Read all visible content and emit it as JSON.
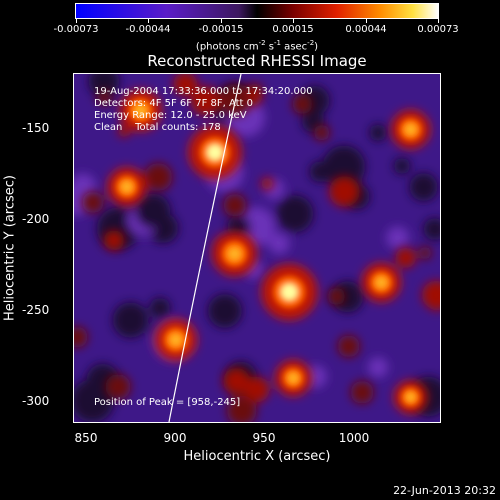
{
  "colorbar": {
    "ticks": [
      "-0.00073",
      "-0.00044",
      "-0.00015",
      "0.00015",
      "0.00044",
      "0.00073"
    ],
    "units_prefix": "(photons cm",
    "units_exp1": "-2",
    "units_mid1": " s",
    "units_exp2": "-1",
    "units_mid2": " asec",
    "units_exp3": "-2",
    "units_suffix": ")"
  },
  "title": "Reconstructed RHESSI Image",
  "axes": {
    "xlabel": "Heliocentric X (arcsec)",
    "ylabel": "Heliocentric Y (arcsec)",
    "xticks": [
      "850",
      "900",
      "950",
      "1000"
    ],
    "yticks": [
      "-150",
      "-200",
      "-250",
      "-300"
    ]
  },
  "info": {
    "time": "19-Aug-2004 17:33:36.000 to 17:34:20.000",
    "detectors": "Detectors: 4F 5F 6F 7F 8F, Att 0",
    "energy": "Energy Range: 12.0 - 25.0 keV",
    "clean": "Clean    Total counts: 178"
  },
  "peak": "Position of Peak = [958,-245]",
  "timestamp": "22-Jun-2013 20:32",
  "chart_data": {
    "type": "heatmap",
    "title": "Reconstructed RHESSI Image",
    "xlabel": "Heliocentric X (arcsec)",
    "ylabel": "Heliocentric Y (arcsec)",
    "xlim": [
      848,
      1035
    ],
    "ylim": [
      -313,
      -131
    ],
    "colorbar_range": [
      -0.00073,
      0.00073
    ],
    "peak": [
      958,
      -245
    ],
    "bright_sources": [
      {
        "x": 920,
        "y": -172,
        "level": 0.95
      },
      {
        "x": 958,
        "y": -245,
        "level": 1.0
      },
      {
        "x": 882,
        "y": -150,
        "level": 0.75
      },
      {
        "x": 875,
        "y": -190,
        "level": 0.7
      },
      {
        "x": 930,
        "y": -225,
        "level": 0.8
      },
      {
        "x": 1020,
        "y": -160,
        "level": 0.7
      },
      {
        "x": 1005,
        "y": -240,
        "level": 0.7
      },
      {
        "x": 900,
        "y": -270,
        "level": 0.75
      },
      {
        "x": 960,
        "y": -290,
        "level": 0.65
      },
      {
        "x": 1020,
        "y": -300,
        "level": 0.6
      }
    ]
  }
}
